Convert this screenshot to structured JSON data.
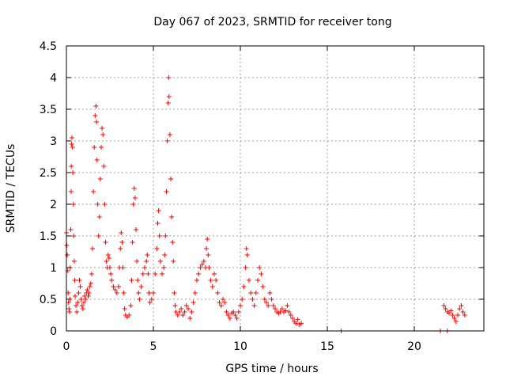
{
  "chart_data": {
    "type": "scatter",
    "title": "Day 067 of 2023, SRMTID for receiver tong",
    "xlabel": "GPS time / hours",
    "ylabel": "SRMTID / TECUs",
    "xlim": [
      0,
      24
    ],
    "ylim": [
      0,
      4.5
    ],
    "x_ticks": [
      0,
      5,
      10,
      15,
      20
    ],
    "y_ticks": [
      0,
      0.5,
      1,
      1.5,
      2,
      2.5,
      3,
      3.5,
      4,
      4.5
    ],
    "x_tick_labels": [
      "0",
      "5",
      "10",
      "15",
      "20"
    ],
    "y_tick_labels": [
      "0",
      "0.5",
      "1",
      "1.5",
      "2",
      "2.5",
      "3",
      "3.5",
      "4",
      "4.5"
    ],
    "grid": true,
    "marker": "+",
    "color": "#ff0000",
    "series": [
      {
        "name": "SRMTID",
        "points": [
          [
            0.0,
            1.55
          ],
          [
            0.02,
            1.35
          ],
          [
            0.05,
            1.2
          ],
          [
            0.08,
            0.95
          ],
          [
            0.1,
            0.6
          ],
          [
            0.12,
            0.45
          ],
          [
            0.15,
            0.35
          ],
          [
            0.18,
            0.3
          ],
          [
            0.2,
            0.5
          ],
          [
            0.22,
            1.0
          ],
          [
            0.25,
            1.6
          ],
          [
            0.27,
            2.2
          ],
          [
            0.28,
            2.6
          ],
          [
            0.3,
            2.95
          ],
          [
            0.32,
            3.05
          ],
          [
            0.35,
            2.9
          ],
          [
            0.37,
            2.5
          ],
          [
            0.4,
            2.0
          ],
          [
            0.42,
            1.5
          ],
          [
            0.45,
            1.1
          ],
          [
            0.48,
            0.8
          ],
          [
            0.5,
            0.55
          ],
          [
            0.55,
            0.4
          ],
          [
            0.6,
            0.3
          ],
          [
            0.65,
            0.45
          ],
          [
            0.7,
            0.6
          ],
          [
            0.75,
            0.8
          ],
          [
            0.8,
            0.7
          ],
          [
            0.85,
            0.5
          ],
          [
            0.9,
            0.4
          ],
          [
            0.95,
            0.35
          ],
          [
            1.0,
            0.45
          ],
          [
            1.05,
            0.55
          ],
          [
            1.1,
            0.5
          ],
          [
            1.15,
            0.6
          ],
          [
            1.2,
            0.65
          ],
          [
            1.25,
            0.55
          ],
          [
            1.3,
            0.6
          ],
          [
            1.35,
            0.7
          ],
          [
            1.4,
            0.75
          ],
          [
            1.45,
            0.9
          ],
          [
            1.5,
            1.3
          ],
          [
            1.55,
            2.2
          ],
          [
            1.6,
            2.9
          ],
          [
            1.65,
            3.4
          ],
          [
            1.7,
            3.55
          ],
          [
            1.73,
            3.3
          ],
          [
            1.76,
            2.7
          ],
          [
            1.8,
            2.0
          ],
          [
            1.85,
            1.5
          ],
          [
            1.9,
            1.8
          ],
          [
            1.95,
            2.4
          ],
          [
            2.0,
            2.9
          ],
          [
            2.05,
            3.2
          ],
          [
            2.1,
            3.1
          ],
          [
            2.15,
            2.6
          ],
          [
            2.2,
            2.0
          ],
          [
            2.25,
            1.4
          ],
          [
            2.3,
            1.1
          ],
          [
            2.35,
            1.0
          ],
          [
            2.4,
            1.2
          ],
          [
            2.45,
            1.15
          ],
          [
            2.5,
            1.0
          ],
          [
            2.55,
            0.9
          ],
          [
            2.6,
            0.8
          ],
          [
            2.7,
            0.7
          ],
          [
            2.8,
            0.65
          ],
          [
            2.9,
            0.6
          ],
          [
            3.0,
            0.7
          ],
          [
            3.05,
            1.0
          ],
          [
            3.1,
            1.3
          ],
          [
            3.15,
            1.55
          ],
          [
            3.2,
            1.4
          ],
          [
            3.25,
            1.0
          ],
          [
            3.3,
            0.6
          ],
          [
            3.35,
            0.35
          ],
          [
            3.4,
            0.25
          ],
          [
            3.5,
            0.22
          ],
          [
            3.6,
            0.25
          ],
          [
            3.7,
            0.4
          ],
          [
            3.75,
            0.8
          ],
          [
            3.8,
            1.4
          ],
          [
            3.85,
            2.0
          ],
          [
            3.9,
            2.25
          ],
          [
            3.95,
            2.1
          ],
          [
            4.0,
            1.6
          ],
          [
            4.05,
            1.1
          ],
          [
            4.1,
            0.8
          ],
          [
            4.15,
            0.6
          ],
          [
            4.2,
            0.5
          ],
          [
            4.3,
            0.7
          ],
          [
            4.4,
            0.9
          ],
          [
            4.5,
            1.0
          ],
          [
            4.6,
            1.1
          ],
          [
            4.65,
            1.2
          ],
          [
            4.7,
            0.9
          ],
          [
            4.75,
            0.6
          ],
          [
            4.8,
            0.45
          ],
          [
            4.9,
            0.5
          ],
          [
            5.0,
            0.6
          ],
          [
            5.1,
            0.9
          ],
          [
            5.2,
            1.3
          ],
          [
            5.25,
            1.7
          ],
          [
            5.3,
            1.9
          ],
          [
            5.35,
            1.5
          ],
          [
            5.4,
            1.1
          ],
          [
            5.5,
            0.9
          ],
          [
            5.6,
            1.0
          ],
          [
            5.65,
            1.2
          ],
          [
            5.7,
            1.5
          ],
          [
            5.75,
            2.2
          ],
          [
            5.8,
            3.0
          ],
          [
            5.85,
            3.6
          ],
          [
            5.88,
            4.0
          ],
          [
            5.9,
            3.7
          ],
          [
            5.95,
            3.1
          ],
          [
            6.0,
            2.4
          ],
          [
            6.05,
            1.8
          ],
          [
            6.1,
            1.4
          ],
          [
            6.15,
            1.1
          ],
          [
            6.2,
            0.6
          ],
          [
            6.25,
            0.4
          ],
          [
            6.3,
            0.3
          ],
          [
            6.4,
            0.25
          ],
          [
            6.5,
            0.3
          ],
          [
            6.6,
            0.35
          ],
          [
            6.7,
            0.25
          ],
          [
            6.8,
            0.3
          ],
          [
            6.9,
            0.4
          ],
          [
            7.0,
            0.35
          ],
          [
            7.1,
            0.2
          ],
          [
            7.2,
            0.3
          ],
          [
            7.3,
            0.45
          ],
          [
            7.4,
            0.6
          ],
          [
            7.5,
            0.8
          ],
          [
            7.6,
            0.9
          ],
          [
            7.7,
            1.0
          ],
          [
            7.8,
            1.05
          ],
          [
            7.9,
            1.1
          ],
          [
            8.0,
            1.0
          ],
          [
            8.05,
            1.3
          ],
          [
            8.1,
            1.45
          ],
          [
            8.15,
            1.2
          ],
          [
            8.2,
            1.0
          ],
          [
            8.3,
            0.8
          ],
          [
            8.4,
            0.7
          ],
          [
            8.5,
            0.9
          ],
          [
            8.6,
            0.8
          ],
          [
            8.7,
            0.6
          ],
          [
            8.8,
            0.45
          ],
          [
            8.9,
            0.4
          ],
          [
            9.0,
            0.5
          ],
          [
            9.1,
            0.45
          ],
          [
            9.2,
            0.3
          ],
          [
            9.3,
            0.25
          ],
          [
            9.4,
            0.2
          ],
          [
            9.5,
            0.28
          ],
          [
            9.6,
            0.3
          ],
          [
            9.7,
            0.25
          ],
          [
            9.8,
            0.2
          ],
          [
            9.9,
            0.3
          ],
          [
            10.0,
            0.4
          ],
          [
            10.1,
            0.5
          ],
          [
            10.2,
            0.7
          ],
          [
            10.3,
            1.0
          ],
          [
            10.35,
            1.3
          ],
          [
            10.4,
            1.2
          ],
          [
            10.5,
            0.8
          ],
          [
            10.6,
            0.6
          ],
          [
            10.7,
            0.5
          ],
          [
            10.8,
            0.4
          ],
          [
            10.9,
            0.6
          ],
          [
            11.0,
            0.8
          ],
          [
            11.1,
            1.0
          ],
          [
            11.2,
            0.9
          ],
          [
            11.3,
            0.7
          ],
          [
            11.4,
            0.5
          ],
          [
            11.5,
            0.45
          ],
          [
            11.6,
            0.4
          ],
          [
            11.7,
            0.6
          ],
          [
            11.8,
            0.5
          ],
          [
            11.9,
            0.4
          ],
          [
            12.0,
            0.35
          ],
          [
            12.1,
            0.3
          ],
          [
            12.2,
            0.28
          ],
          [
            12.3,
            0.3
          ],
          [
            12.4,
            0.35
          ],
          [
            12.5,
            0.3
          ],
          [
            12.6,
            0.32
          ],
          [
            12.7,
            0.4
          ],
          [
            12.8,
            0.3
          ],
          [
            12.9,
            0.25
          ],
          [
            13.0,
            0.2
          ],
          [
            13.1,
            0.15
          ],
          [
            13.2,
            0.12
          ],
          [
            13.3,
            0.18
          ],
          [
            13.4,
            0.1
          ],
          [
            13.5,
            0.12
          ],
          [
            15.8,
            0.0
          ],
          [
            21.5,
            0.0
          ],
          [
            21.9,
            0.0
          ],
          [
            21.7,
            0.4
          ],
          [
            21.8,
            0.35
          ],
          [
            21.9,
            0.3
          ],
          [
            22.0,
            0.28
          ],
          [
            22.1,
            0.32
          ],
          [
            22.2,
            0.25
          ],
          [
            22.3,
            0.2
          ],
          [
            22.4,
            0.15
          ],
          [
            22.5,
            0.25
          ],
          [
            22.6,
            0.35
          ],
          [
            22.7,
            0.4
          ],
          [
            22.8,
            0.3
          ],
          [
            22.9,
            0.25
          ]
        ]
      }
    ]
  }
}
